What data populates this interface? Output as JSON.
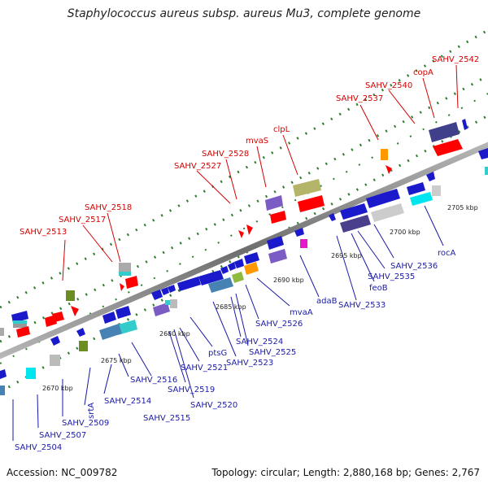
{
  "title": "Staphylococcus aureus subsp. aureus Mu3, complete genome",
  "accession": "Accession: NC_009782",
  "summary": "Topology: circular; Length: 2,880,168 bp; Genes: 2,767",
  "colors": {
    "forward_label": "#d40000",
    "reverse_label": "#1a1aa6",
    "backbone": "#8c8c8c",
    "tick": "#2f7d2f"
  },
  "scale_labels": [
    "2670 kbp",
    "2675 kbp",
    "2680 kbp",
    "2685 kbp",
    "2690 kbp",
    "2695 kbp",
    "2700 kbp",
    "2705 kbp"
  ],
  "forward_genes": [
    "SAHV_2513",
    "SAHV_2517",
    "SAHV_2518",
    "SAHV_2527",
    "SAHV_2528",
    "mvaS",
    "clpL",
    "SAHV_2537",
    "SAHV_2540",
    "copA",
    "SAHV_2542"
  ],
  "reverse_genes": [
    "SAHV_2504",
    "SAHV_2507",
    "SAHV_2509",
    "srtA",
    "SAHV_2514",
    "SAHV_2515",
    "SAHV_2516",
    "SAHV_2519",
    "SAHV_2520",
    "SAHV_2521",
    "ptsG",
    "SAHV_2523",
    "SAHV_2524",
    "SAHV_2525",
    "SAHV_2526",
    "mvaA",
    "adaB",
    "SAHV_2533",
    "feoB",
    "SAHV_2535",
    "SAHV_2536",
    "rocA"
  ]
}
